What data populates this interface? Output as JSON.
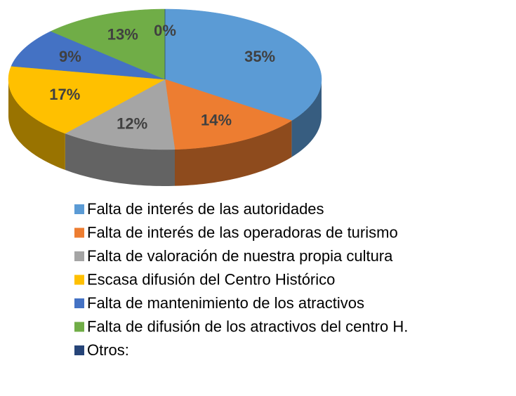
{
  "chart_data": {
    "type": "pie",
    "categories": [
      "Falta de interés de las autoridades",
      "Falta de interés de las operadoras de turismo",
      "Falta de valoración de nuestra propia cultura",
      "Escasa difusión del Centro Histórico",
      "Falta de mantenimiento de los atractivos",
      "Falta de difusión de los atractivos del centro H.",
      "Otros:"
    ],
    "values": [
      35,
      14,
      12,
      17,
      9,
      13,
      0
    ],
    "value_labels": [
      "35%",
      "14%",
      "12%",
      "17%",
      "9%",
      "13%",
      "0%"
    ],
    "colors": [
      "#5b9bd5",
      "#ed7d31",
      "#a5a5a5",
      "#ffc000",
      "#4472c4",
      "#70ad47",
      "#264478"
    ],
    "legend": "bottom"
  }
}
